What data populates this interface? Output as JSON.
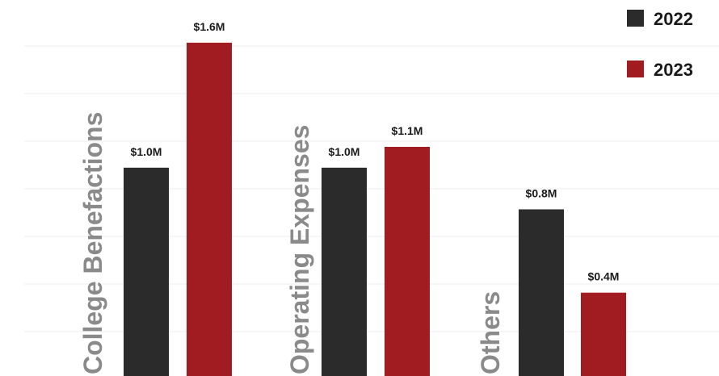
{
  "chart_data": {
    "type": "bar",
    "categories": [
      "College Benefactions",
      "Operating Expenses",
      "Others"
    ],
    "series": [
      {
        "name": "2022",
        "color": "#2b2b2b",
        "values": [
          1.0,
          1.0,
          0.8
        ],
        "labels": [
          "$1.0M",
          "$1.0M",
          "$0.8M"
        ]
      },
      {
        "name": "2023",
        "color": "#a01c20",
        "values": [
          1.6,
          1.1,
          0.4
        ],
        "labels": [
          "$1.6M",
          "$1.1M",
          "$0.4M"
        ]
      }
    ],
    "ylim": [
      0,
      1.65
    ],
    "grid": true,
    "legend": "top-right"
  }
}
